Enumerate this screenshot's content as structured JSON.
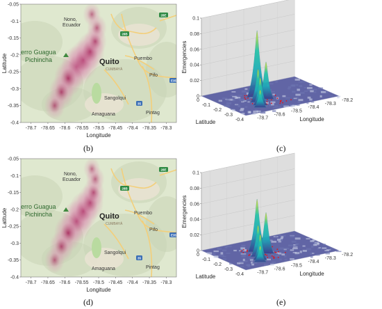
{
  "captions": {
    "b": "(b)",
    "c": "(c)",
    "d": "(d)",
    "e": "(e)"
  },
  "map_places": {
    "nono": "Nono,",
    "ecuador": "Ecuador",
    "guagua1": "erro Guagua",
    "guagua2": "Pichincha",
    "quito": "Quito",
    "cumbaya": "CUMBAYÁ",
    "puembo": "Puembo",
    "pifo": "Pifo",
    "sangolqui": "Sangolqui",
    "amaguana": "Amaguana",
    "pintag": "Pintag",
    "route_28b": "28B",
    "route_35": "35",
    "route_28e": "28E",
    "route_e35": "E35"
  },
  "colors": {
    "map_land": "#dfe8cf",
    "map_terrain": "#c9d4b6",
    "urban": "#e8e2d2",
    "road": "#f3cf7b",
    "park": "#b9dba0",
    "heat_core": "#a10f4e",
    "heat_edge": "#d98fb1",
    "pane_left": "#dedede",
    "pane_right": "#ececec",
    "surface_base": "#3a3f8f",
    "peak_low": "#1fa9b9",
    "peak_mid": "#27c4a8",
    "peak_high": "#f6e81a",
    "points": "#e0141b"
  },
  "chart_data": [
    {
      "id": "b",
      "type": "heatmap",
      "title": "",
      "xlabel": "Longitude",
      "ylabel": "Latitude",
      "xticks": [
        "-78.7",
        "-78.65",
        "-78.6",
        "-78.55",
        "-78.5",
        "-78.45",
        "-78.4",
        "-78.35",
        "-78.3"
      ],
      "yticks": [
        "-0.05",
        "-0.1",
        "-0.15",
        "-0.2",
        "-0.25",
        "-0.3",
        "-0.35",
        "-0.4"
      ],
      "xlim": [
        -78.73,
        -78.27
      ],
      "ylim": [
        -0.4,
        -0.05
      ],
      "hotspots": [
        {
          "lon": -78.565,
          "lat": -0.235,
          "intensity": 1.0
        },
        {
          "lon": -78.545,
          "lat": -0.215,
          "intensity": 0.95
        },
        {
          "lon": -78.525,
          "lat": -0.19,
          "intensity": 0.9
        },
        {
          "lon": -78.59,
          "lat": -0.27,
          "intensity": 0.85
        },
        {
          "lon": -78.51,
          "lat": -0.16,
          "intensity": 0.6
        },
        {
          "lon": -78.505,
          "lat": -0.12,
          "intensity": 0.45
        },
        {
          "lon": -78.52,
          "lat": -0.08,
          "intensity": 0.35
        },
        {
          "lon": -78.61,
          "lat": -0.31,
          "intensity": 0.7
        },
        {
          "lon": -78.63,
          "lat": -0.35,
          "intensity": 0.5
        }
      ]
    },
    {
      "id": "c",
      "type": "surface",
      "title": "",
      "xlabel": "Longitude",
      "ylabel": "Latitude",
      "zlabel": "Emergencies",
      "zticks": [
        "0",
        "0.02",
        "0.04",
        "0.06",
        "0.08",
        "0.1"
      ],
      "zlim": [
        0,
        0.1
      ],
      "lat_ticks": [
        "0",
        "-0.1",
        "-0.2",
        "-0.3",
        "-0.4"
      ],
      "lon_ticks": [
        "-78.7",
        "-78.6",
        "-78.5",
        "-78.4",
        "-78.3",
        "-78.2"
      ],
      "xlim": [
        -78.75,
        -78.2
      ],
      "ylim": [
        -0.4,
        0
      ],
      "peaks": [
        {
          "lon": -78.52,
          "lat": -0.15,
          "z": 0.083
        },
        {
          "lon": -78.5,
          "lat": -0.2,
          "z": 0.045
        },
        {
          "lon": -78.56,
          "lat": -0.22,
          "z": 0.04
        },
        {
          "lon": -78.58,
          "lat": -0.27,
          "z": 0.033
        },
        {
          "lon": -78.6,
          "lat": -0.3,
          "z": 0.02
        },
        {
          "lon": -78.48,
          "lat": -0.12,
          "z": 0.02
        }
      ]
    },
    {
      "id": "d",
      "type": "heatmap",
      "title": "",
      "xlabel": "Longitude",
      "ylabel": "Latitude",
      "xticks": [
        "-78.7",
        "-78.65",
        "-78.6",
        "-78.55",
        "-78.5",
        "-78.45",
        "-78.4",
        "-78.35",
        "-78.3"
      ],
      "yticks": [
        "-0.05",
        "-0.1",
        "-0.15",
        "-0.2",
        "-0.25",
        "-0.3",
        "-0.35",
        "-0.4"
      ],
      "xlim": [
        -78.73,
        -78.27
      ],
      "ylim": [
        -0.4,
        -0.05
      ],
      "hotspots": [
        {
          "lon": -78.565,
          "lat": -0.235,
          "intensity": 1.0
        },
        {
          "lon": -78.545,
          "lat": -0.205,
          "intensity": 0.9
        },
        {
          "lon": -78.525,
          "lat": -0.18,
          "intensity": 0.8
        },
        {
          "lon": -78.59,
          "lat": -0.27,
          "intensity": 0.85
        },
        {
          "lon": -78.515,
          "lat": -0.15,
          "intensity": 0.55
        },
        {
          "lon": -78.51,
          "lat": -0.11,
          "intensity": 0.4
        },
        {
          "lon": -78.52,
          "lat": -0.08,
          "intensity": 0.3
        },
        {
          "lon": -78.61,
          "lat": -0.31,
          "intensity": 0.65
        },
        {
          "lon": -78.63,
          "lat": -0.35,
          "intensity": 0.45
        }
      ]
    },
    {
      "id": "e",
      "type": "surface",
      "title": "",
      "xlabel": "Longitude",
      "ylabel": "Latitude",
      "zlabel": "Emergencies",
      "zticks": [
        "0",
        "0.02",
        "0.04",
        "0.06",
        "0.08",
        "0.1"
      ],
      "zlim": [
        0,
        0.1
      ],
      "lat_ticks": [
        "0",
        "-0.1",
        "-0.2",
        "-0.3",
        "-0.4"
      ],
      "lon_ticks": [
        "-78.7",
        "-78.6",
        "-78.5",
        "-78.4",
        "-78.3",
        "-78.2"
      ],
      "xlim": [
        -78.75,
        -78.2
      ],
      "ylim": [
        -0.4,
        0
      ],
      "peaks": [
        {
          "lon": -78.52,
          "lat": -0.15,
          "z": 0.065
        },
        {
          "lon": -78.5,
          "lat": -0.2,
          "z": 0.05
        },
        {
          "lon": -78.56,
          "lat": -0.22,
          "z": 0.038
        },
        {
          "lon": -78.58,
          "lat": -0.27,
          "z": 0.03
        },
        {
          "lon": -78.6,
          "lat": -0.3,
          "z": 0.018
        },
        {
          "lon": -78.48,
          "lat": -0.12,
          "z": 0.018
        }
      ]
    }
  ]
}
